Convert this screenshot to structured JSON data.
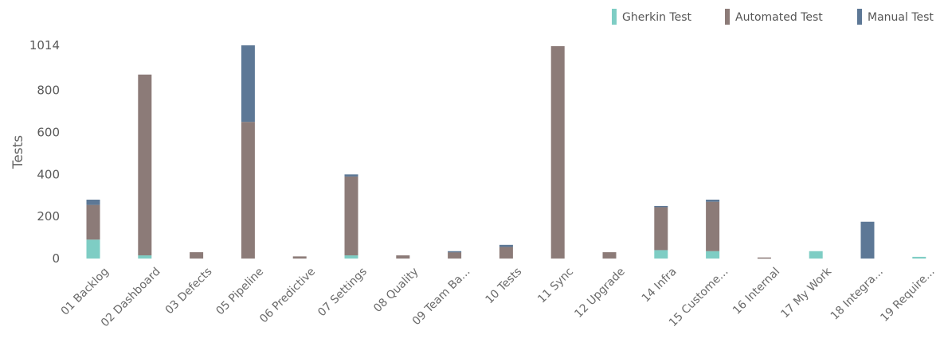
{
  "chart_data": {
    "type": "bar",
    "stacked": true,
    "ylabel": "Tests",
    "xlabel": "",
    "ylim": [
      0,
      1014
    ],
    "yticks": [
      0,
      200,
      400,
      600,
      800,
      1014
    ],
    "grid": false,
    "legend_position": "top-right",
    "categories": [
      "01 Backlog",
      "02 Dashboard",
      "03 Defects",
      "05 Pipeline",
      "06 Predictive",
      "07 Settings",
      "08 Quality",
      "09 Team Ba...",
      "10 Tests",
      "11 Sync",
      "12 Upgrade",
      "14 Infra",
      "15 Custome...",
      "16 Internal",
      "17 My Work",
      "18 Integra...",
      "19 Require..."
    ],
    "series": [
      {
        "name": "Gherkin Test",
        "color": "#7ecdc4",
        "values": [
          90,
          15,
          0,
          0,
          0,
          15,
          0,
          0,
          0,
          0,
          0,
          40,
          35,
          0,
          35,
          0,
          8
        ]
      },
      {
        "name": "Automated Test",
        "color": "#8c7b78",
        "values": [
          165,
          860,
          30,
          650,
          10,
          375,
          15,
          30,
          55,
          1010,
          30,
          205,
          235,
          5,
          0,
          0,
          0
        ]
      },
      {
        "name": "Manual Test",
        "color": "#5d7896",
        "values": [
          25,
          0,
          0,
          364,
          0,
          10,
          0,
          5,
          10,
          0,
          0,
          5,
          10,
          0,
          0,
          175,
          0
        ]
      }
    ]
  }
}
